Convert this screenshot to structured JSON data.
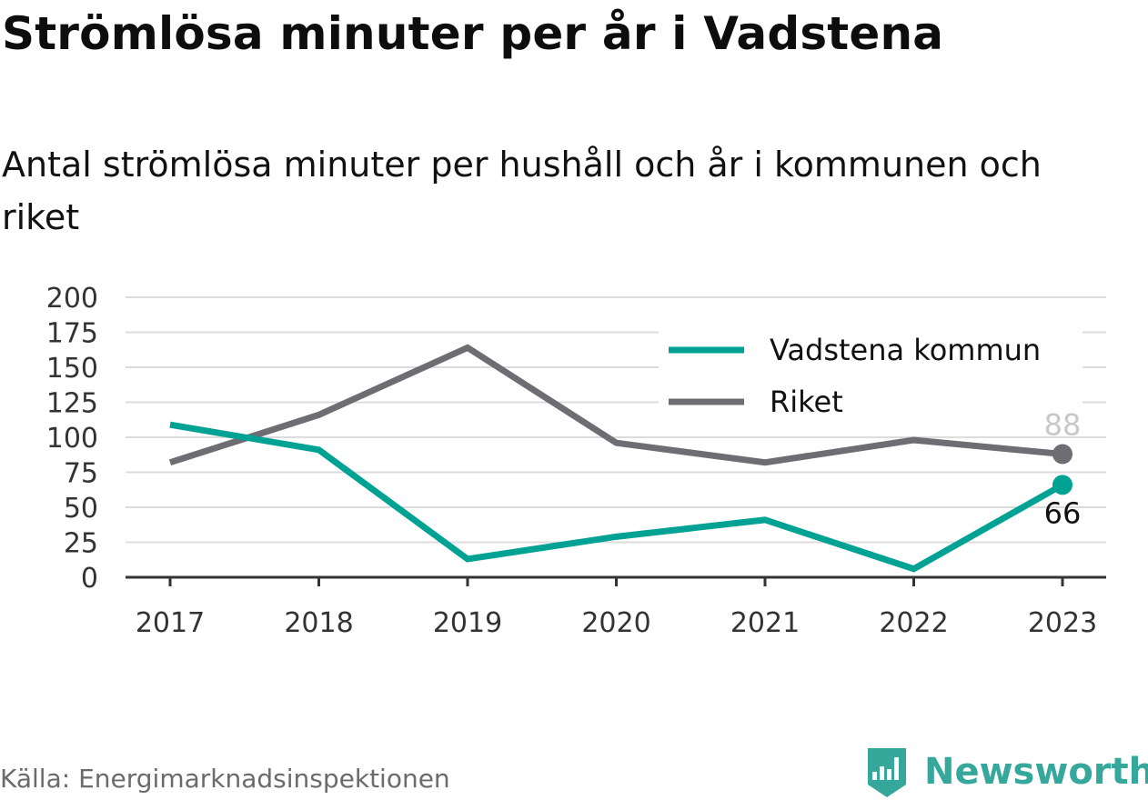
{
  "chart_data": {
    "type": "line",
    "title": "Strömlösa minuter per år i Vadstena",
    "subtitle": "Antal strömlösa minuter per hushåll och år i kommunen och riket",
    "x": [
      "2017",
      "2018",
      "2019",
      "2020",
      "2021",
      "2022",
      "2023"
    ],
    "series": [
      {
        "name": "Vadstena kommun",
        "color": "#00a294",
        "values": [
          109,
          91,
          13,
          29,
          41,
          6,
          66
        ],
        "end_label": "66"
      },
      {
        "name": "Riket",
        "color": "#6e6d73",
        "values": [
          82,
          116,
          164,
          96,
          82,
          98,
          88
        ],
        "end_label": "88"
      }
    ],
    "ylim": [
      0,
      200
    ],
    "yticks": [
      "0",
      "25",
      "50",
      "75",
      "100",
      "125",
      "150",
      "175",
      "200"
    ],
    "xlabel": "",
    "ylabel": "",
    "grid": true,
    "legend_position": "top-right"
  },
  "footer": {
    "source": "Källa: Energimarknadsinspektionen",
    "brand": "Newsworthy",
    "brand_color": "#35a79b"
  }
}
